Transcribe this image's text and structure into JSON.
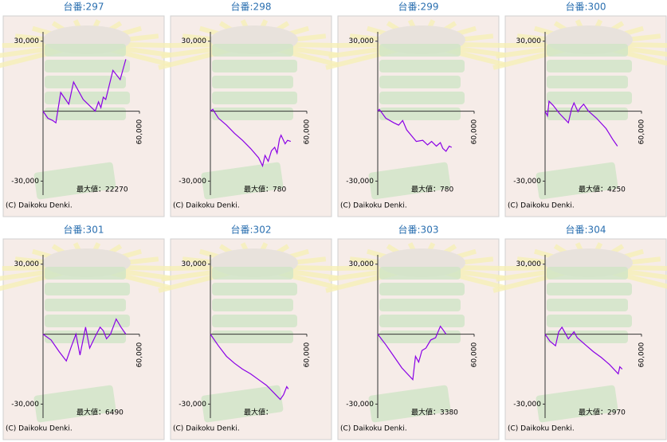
{
  "chart_data": [
    {
      "type": "line",
      "title": "台番:297",
      "max_label": "最大値：22270",
      "copyright": "(C) Daikoku Denki.",
      "color": "#8a00e6",
      "xlim": [
        0,
        60000
      ],
      "xticks": [
        {
          "value": 60000,
          "label": "60,000"
        }
      ],
      "ylim": [
        -36000,
        34000
      ],
      "yticks": [
        {
          "value": 30000,
          "label": "30,000"
        },
        {
          "value": -30000,
          "label": "-30,000"
        }
      ],
      "x": [
        0,
        3000,
        6000,
        8000,
        11000,
        16000,
        19000,
        25000,
        32500,
        34500,
        36000,
        37500,
        39000,
        43500,
        48000,
        51500
      ],
      "values": [
        0,
        -3000,
        -4000,
        -5000,
        8000,
        3000,
        12500,
        5000,
        0,
        4000,
        1500,
        6000,
        5000,
        17500,
        13500,
        22270
      ]
    },
    {
      "type": "line",
      "title": "台番:298",
      "max_label": "最大値：780",
      "copyright": "(C) Daikoku Denki.",
      "color": "#8a00e6",
      "xlim": [
        0,
        60000
      ],
      "xticks": [
        {
          "value": 60000,
          "label": "60,000"
        }
      ],
      "ylim": [
        -36000,
        34000
      ],
      "yticks": [
        {
          "value": 30000,
          "label": "30,000"
        },
        {
          "value": -30000,
          "label": "-30,000"
        }
      ],
      "x": [
        0,
        1500,
        5000,
        10000,
        15000,
        20000,
        25000,
        30000,
        32500,
        34000,
        36000,
        38000,
        40000,
        41500,
        43000,
        44000,
        46500,
        48000,
        50000
      ],
      "values": [
        0,
        780,
        -3000,
        -6000,
        -9500,
        -12500,
        -16000,
        -20000,
        -23500,
        -19000,
        -21500,
        -17000,
        -15500,
        -18000,
        -12000,
        -10300,
        -14000,
        -12500,
        -13000
      ]
    },
    {
      "type": "line",
      "title": "台番:299",
      "max_label": "最大値：780",
      "copyright": "(C) Daikoku Denki.",
      "color": "#8a00e6",
      "xlim": [
        0,
        60000
      ],
      "xticks": [
        {
          "value": 60000,
          "label": "60,000"
        }
      ],
      "ylim": [
        -36000,
        34000
      ],
      "yticks": [
        {
          "value": 30000,
          "label": "30,000"
        },
        {
          "value": -30000,
          "label": "-30,000"
        }
      ],
      "x": [
        0,
        1000,
        5000,
        10000,
        13000,
        15500,
        18000,
        24000,
        28000,
        31000,
        33500,
        36500,
        39000,
        40500,
        42500,
        44500,
        46000
      ],
      "values": [
        0,
        780,
        -3000,
        -5000,
        -6000,
        -4000,
        -8000,
        -13000,
        -12500,
        -14500,
        -13000,
        -15000,
        -13500,
        -16000,
        -17200,
        -15000,
        -15500
      ]
    },
    {
      "type": "line",
      "title": "台番:300",
      "max_label": "最大値：4250",
      "copyright": "(C) Daikoku Denki.",
      "color": "#8a00e6",
      "xlim": [
        0,
        60000
      ],
      "xticks": [
        {
          "value": 60000,
          "label": "60,000"
        }
      ],
      "ylim": [
        -36000,
        34000
      ],
      "yticks": [
        {
          "value": 30000,
          "label": "30,000"
        },
        {
          "value": -30000,
          "label": "-30,000"
        }
      ],
      "x": [
        0,
        1500,
        2500,
        5000,
        9000,
        14500,
        16500,
        18000,
        20500,
        22000,
        24000,
        27000,
        32000,
        38000,
        42000,
        45000
      ],
      "values": [
        0,
        -2000,
        4250,
        2500,
        -1000,
        -5000,
        1000,
        3500,
        -200,
        1500,
        3000,
        0,
        -3000,
        -7500,
        -12000,
        -15000
      ]
    },
    {
      "type": "line",
      "title": "台番:301",
      "max_label": "最大値：6490",
      "copyright": "(C) Daikoku Denki.",
      "color": "#8a00e6",
      "xlim": [
        0,
        60000
      ],
      "xticks": [
        {
          "value": 60000,
          "label": "60,000"
        }
      ],
      "ylim": [
        -36000,
        34000
      ],
      "yticks": [
        {
          "value": 30000,
          "label": "30,000"
        },
        {
          "value": -30000,
          "label": "-30,000"
        }
      ],
      "x": [
        0,
        5000,
        10000,
        14500,
        17500,
        20500,
        23000,
        26500,
        29000,
        32500,
        35500,
        37500,
        39500,
        42000,
        45500,
        48500,
        51500
      ],
      "values": [
        0,
        -2500,
        -7500,
        -11500,
        -5500,
        0,
        -9000,
        3000,
        -6000,
        -1000,
        3000,
        1500,
        -2000,
        0,
        6490,
        3000,
        0
      ]
    },
    {
      "type": "line",
      "title": "台番:302",
      "max_label": "最大値：",
      "copyright": "(C) Daikoku Denki.",
      "color": "#8a00e6",
      "xlim": [
        0,
        60000
      ],
      "xticks": [
        {
          "value": 60000,
          "label": "60,000"
        }
      ],
      "ylim": [
        -36000,
        34000
      ],
      "yticks": [
        {
          "value": 30000,
          "label": "30,000"
        },
        {
          "value": -30000,
          "label": "-30,000"
        }
      ],
      "x": [
        0,
        5000,
        10000,
        15000,
        20000,
        25000,
        30000,
        35000,
        40000,
        43500,
        45500,
        47500,
        48500
      ],
      "values": [
        0,
        -5000,
        -9500,
        -12500,
        -15000,
        -17000,
        -19500,
        -22000,
        -25500,
        -28000,
        -26000,
        -22500,
        -23500
      ]
    },
    {
      "type": "line",
      "title": "台番:303",
      "max_label": "最大値：3380",
      "copyright": "(C) Daikoku Denki.",
      "color": "#8a00e6",
      "xlim": [
        0,
        60000
      ],
      "xticks": [
        {
          "value": 60000,
          "label": "60,000"
        }
      ],
      "ylim": [
        -36000,
        34000
      ],
      "yticks": [
        {
          "value": 30000,
          "label": "30,000"
        },
        {
          "value": -30000,
          "label": "-30,000"
        }
      ],
      "x": [
        0,
        5000,
        10000,
        15000,
        21800,
        23500,
        25500,
        27500,
        30000,
        33000,
        36000,
        39000,
        41000,
        42500
      ],
      "values": [
        0,
        -4500,
        -9500,
        -14500,
        -19500,
        -9500,
        -12000,
        -7000,
        -6000,
        -2500,
        -1500,
        3380,
        1500,
        0
      ]
    },
    {
      "type": "line",
      "title": "台番:304",
      "max_label": "最大値：2970",
      "copyright": "(C) Daikoku Denki.",
      "color": "#8a00e6",
      "xlim": [
        0,
        60000
      ],
      "xticks": [
        {
          "value": 60000,
          "label": "60,000"
        }
      ],
      "ylim": [
        -36000,
        34000
      ],
      "yticks": [
        {
          "value": 30000,
          "label": "30,000"
        },
        {
          "value": -30000,
          "label": "-30,000"
        }
      ],
      "x": [
        0,
        3000,
        6500,
        8500,
        10500,
        14500,
        18000,
        20000,
        25000,
        30000,
        35000,
        40000,
        45500,
        46500,
        48000
      ],
      "values": [
        0,
        -3000,
        -5000,
        1000,
        2970,
        -2000,
        1000,
        -1500,
        -4500,
        -7500,
        -10000,
        -13000,
        -17000,
        -14000,
        -15000
      ]
    }
  ]
}
